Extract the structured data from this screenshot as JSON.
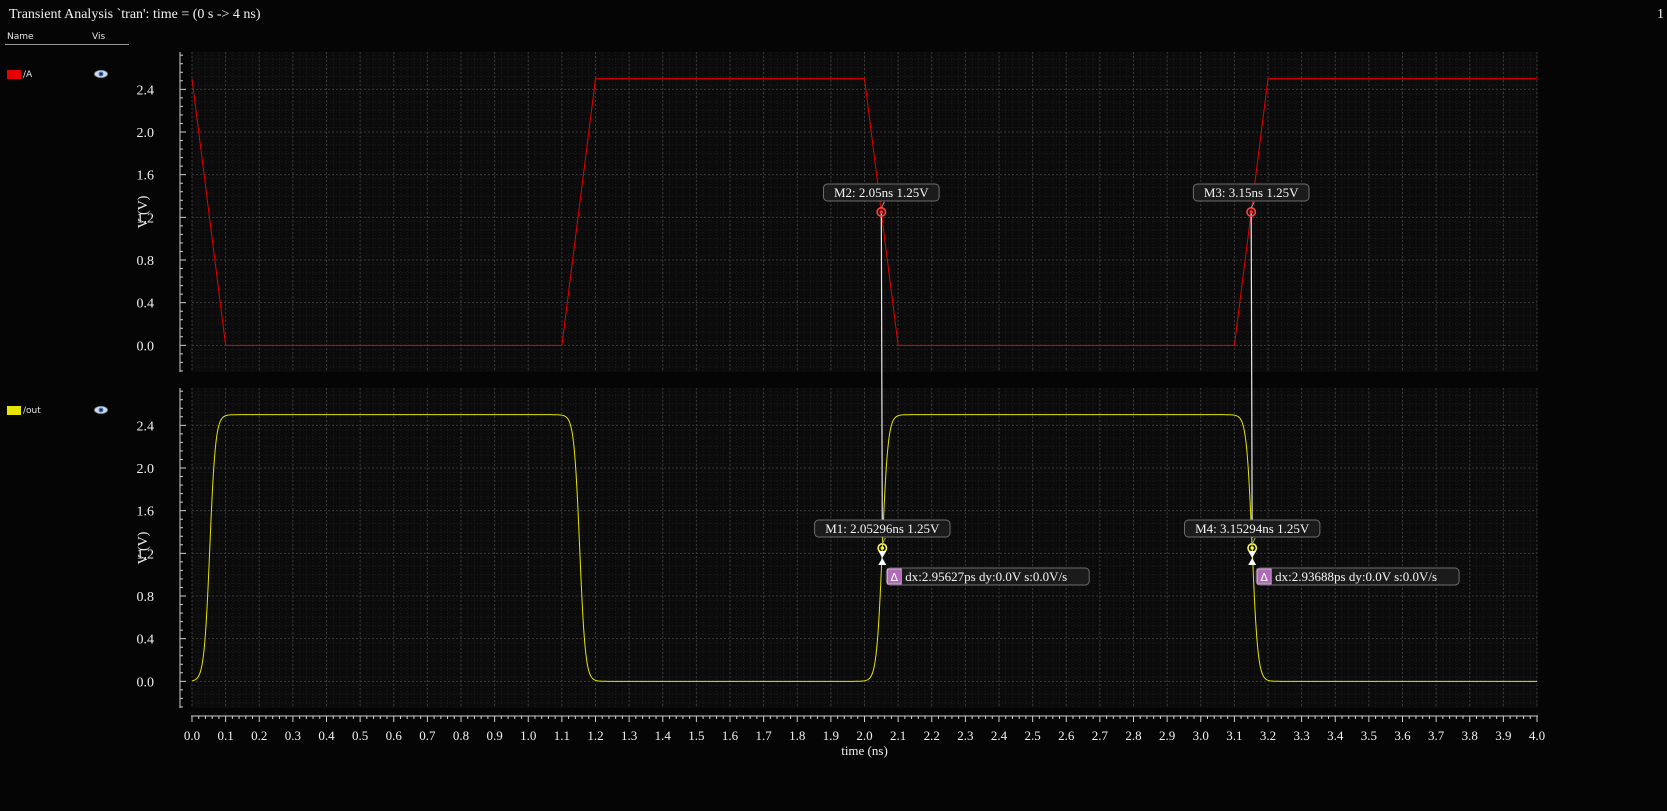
{
  "window": {
    "title": "Transient Analysis `tran': time = (0 s -> 4 ns)",
    "page_number": "1"
  },
  "legend": {
    "name_header": "Name",
    "vis_header": "Vis",
    "signals": [
      {
        "name": "/A",
        "color": "#e60000",
        "icon": "eye-icon"
      },
      {
        "name": "/out",
        "color": "#e6e600",
        "icon": "eye-icon"
      }
    ]
  },
  "chart_data": {
    "type": "line",
    "xlabel": "time (ns)",
    "xlim": [
      0,
      4.0
    ],
    "xticks": [
      "0.0",
      "0.1",
      "0.2",
      "0.3",
      "0.4",
      "0.5",
      "0.6",
      "0.7",
      "0.8",
      "0.9",
      "1.0",
      "1.1",
      "1.2",
      "1.3",
      "1.4",
      "1.5",
      "1.6",
      "1.7",
      "1.8",
      "1.9",
      "2.0",
      "2.1",
      "2.2",
      "2.3",
      "2.4",
      "2.5",
      "2.6",
      "2.7",
      "2.8",
      "2.9",
      "3.0",
      "3.1",
      "3.2",
      "3.3",
      "3.4",
      "3.5",
      "3.6",
      "3.7",
      "3.8",
      "3.9",
      "4.0"
    ],
    "grid": true,
    "panels": [
      {
        "ylabel": "V (V)",
        "ylim": [
          -0.25,
          2.75
        ],
        "yticks": [
          "0.0",
          "0.4",
          "0.8",
          "1.2",
          "1.6",
          "2.0",
          "2.4"
        ],
        "series": [
          {
            "name": "/A",
            "color": "#e60000",
            "shape": "piecewise",
            "x": [
              0,
              0.1,
              1.1,
              1.2,
              2.0,
              2.1,
              3.1,
              3.2,
              4.0
            ],
            "y": [
              2.5,
              0.0,
              0.0,
              2.5,
              2.5,
              0.0,
              0.0,
              2.5,
              2.5
            ]
          }
        ],
        "markers": [
          {
            "label": "M2: 2.05ns 1.25V",
            "x": 2.05,
            "y": 1.25
          },
          {
            "label": "M3: 3.15ns 1.25V",
            "x": 3.15,
            "y": 1.25
          }
        ]
      },
      {
        "ylabel": "V (V)",
        "ylim": [
          -0.25,
          2.75
        ],
        "yticks": [
          "0.0",
          "0.4",
          "0.8",
          "1.2",
          "1.6",
          "2.0",
          "2.4"
        ],
        "series": [
          {
            "name": "/out",
            "color": "#e6e600",
            "shape": "smooth-transitions",
            "low": 0.0,
            "high": 2.5,
            "initial": 0.0,
            "transitions": [
              {
                "t": 0.0529,
                "to": 2.5
              },
              {
                "t": 1.1529,
                "to": 0.0
              },
              {
                "t": 2.0529,
                "to": 2.5
              },
              {
                "t": 3.1529,
                "to": 0.0
              }
            ]
          }
        ],
        "markers": [
          {
            "label": "M1: 2.05296ns 1.25V",
            "x": 2.05296,
            "y": 1.25
          },
          {
            "label": "M4: 3.15294ns 1.25V",
            "x": 3.15294,
            "y": 1.25
          }
        ],
        "deltas": [
          {
            "icon": "delta-icon",
            "label": "dx:2.95627ps dy:0.0V s:0.0V/s",
            "x": 2.05296,
            "y": 1.25
          },
          {
            "icon": "delta-icon",
            "label": "dx:2.93688ps dy:0.0V s:0.0V/s",
            "x": 3.15294,
            "y": 1.25
          }
        ]
      }
    ]
  }
}
